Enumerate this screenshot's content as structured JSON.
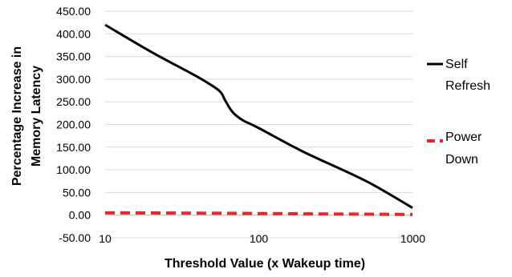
{
  "chart_data": {
    "type": "line",
    "title": "",
    "xlabel": "Threshold Value (x Wakeup time)",
    "ylabel_lines": [
      "Percentage Increase in",
      "Memory Latency"
    ],
    "x_scale": "log",
    "xlim": [
      10,
      1000
    ],
    "ylim": [
      -50,
      450
    ],
    "x_ticks": [
      10,
      100,
      1000
    ],
    "x_tick_labels": [
      "10",
      "100",
      "1000"
    ],
    "y_ticks": [
      450,
      400,
      350,
      300,
      250,
      200,
      150,
      100,
      50,
      0,
      -50
    ],
    "y_tick_labels": [
      "450.00",
      "400.00",
      "350.00",
      "300.00",
      "250.00",
      "200.00",
      "150.00",
      "100.00",
      "50.00",
      "0.00",
      "-50.00"
    ],
    "grid": "horizontal",
    "legend_position": "right",
    "series": [
      {
        "name_lines": [
          "Self",
          "Refresh"
        ],
        "color": "#000000",
        "dash": "solid",
        "x": [
          10,
          20,
          40,
          55,
          60,
          65,
          70,
          80,
          100,
          200,
          500,
          1000
        ],
        "y": [
          420,
          360,
          305,
          275,
          255,
          235,
          222,
          208,
          192,
          138,
          75,
          16
        ]
      },
      {
        "name_lines": [
          "Power",
          "Down"
        ],
        "color": "#e8262b",
        "dash": "dashed",
        "x": [
          10,
          30,
          100,
          300,
          1000
        ],
        "y": [
          5,
          4.5,
          3.5,
          2.5,
          1.5
        ]
      }
    ]
  }
}
